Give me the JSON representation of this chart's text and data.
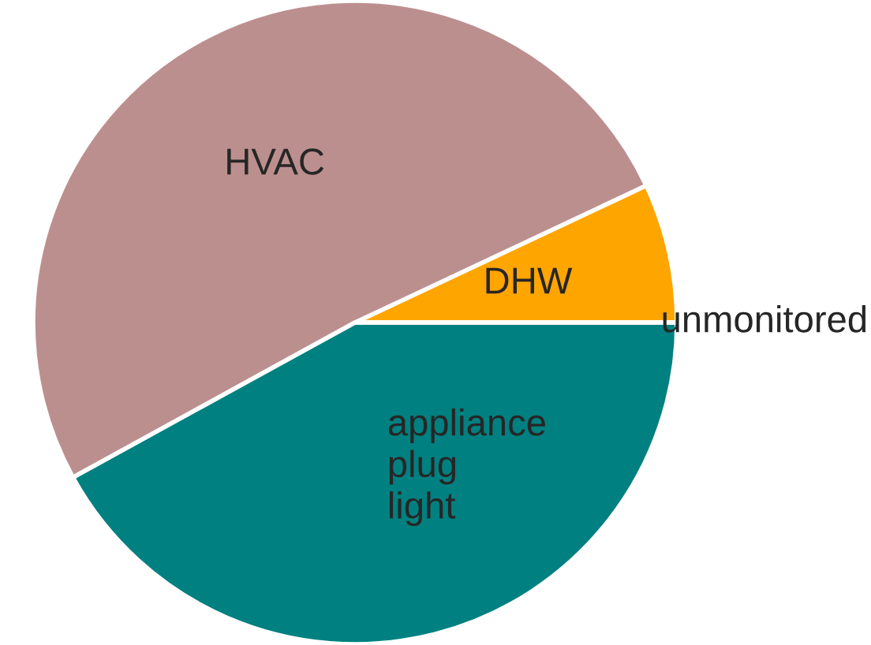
{
  "chart_data": {
    "type": "pie",
    "categories": [
      "DHW",
      "HVAC",
      "appliance\nplug\nlight",
      "unmonitored"
    ],
    "values": [
      7,
      51,
      42,
      0
    ],
    "colors": [
      "#ffa500",
      "#bc8f8f",
      "#008080",
      "#ffffff"
    ]
  }
}
